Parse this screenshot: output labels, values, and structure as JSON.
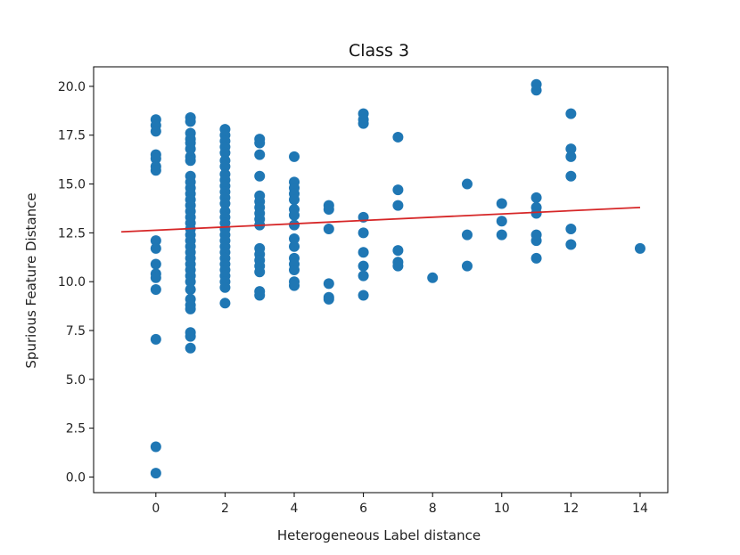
{
  "chart_data": {
    "type": "scatter",
    "title": "Class 3",
    "xlabel": "Heterogeneous Label distance",
    "ylabel": "Spurious Feature Distance",
    "xlim": [
      -1.8,
      14.8
    ],
    "ylim": [
      -0.8,
      21.0
    ],
    "xticks": [
      0,
      2,
      4,
      6,
      8,
      10,
      12,
      14
    ],
    "xtick_labels": [
      "0",
      "2",
      "4",
      "6",
      "8",
      "10",
      "12",
      "14"
    ],
    "yticks": [
      0.0,
      2.5,
      5.0,
      7.5,
      10.0,
      12.5,
      15.0,
      17.5,
      20.0
    ],
    "ytick_labels": [
      "0.0",
      "2.5",
      "5.0",
      "7.5",
      "10.0",
      "12.5",
      "15.0",
      "17.5",
      "20.0"
    ],
    "grid": false,
    "point_color": "#1f77b4",
    "line_color": "#d62728",
    "series": [
      {
        "kind": "scatter",
        "points": [
          [
            0,
            18.3
          ],
          [
            0,
            18.0
          ],
          [
            0,
            17.7
          ],
          [
            0,
            16.5
          ],
          [
            0,
            16.3
          ],
          [
            0,
            15.9
          ],
          [
            0,
            15.7
          ],
          [
            0,
            12.1
          ],
          [
            0,
            11.7
          ],
          [
            0,
            10.9
          ],
          [
            0,
            10.4
          ],
          [
            0,
            10.2
          ],
          [
            0,
            9.6
          ],
          [
            0,
            7.05
          ],
          [
            0,
            1.55
          ],
          [
            0,
            0.2
          ],
          [
            1,
            18.4
          ],
          [
            1,
            18.2
          ],
          [
            1,
            17.6
          ],
          [
            1,
            17.3
          ],
          [
            1,
            17.1
          ],
          [
            1,
            16.8
          ],
          [
            1,
            16.4
          ],
          [
            1,
            16.2
          ],
          [
            1,
            15.4
          ],
          [
            1,
            15.1
          ],
          [
            1,
            14.8
          ],
          [
            1,
            14.5
          ],
          [
            1,
            14.2
          ],
          [
            1,
            13.9
          ],
          [
            1,
            13.6
          ],
          [
            1,
            13.3
          ],
          [
            1,
            13.0
          ],
          [
            1,
            12.7
          ],
          [
            1,
            12.4
          ],
          [
            1,
            12.1
          ],
          [
            1,
            11.8
          ],
          [
            1,
            11.5
          ],
          [
            1,
            11.2
          ],
          [
            1,
            10.9
          ],
          [
            1,
            10.6
          ],
          [
            1,
            10.3
          ],
          [
            1,
            10.0
          ],
          [
            1,
            9.6
          ],
          [
            1,
            9.1
          ],
          [
            1,
            8.8
          ],
          [
            1,
            8.6
          ],
          [
            1,
            7.4
          ],
          [
            1,
            7.2
          ],
          [
            1,
            6.6
          ],
          [
            2,
            17.8
          ],
          [
            2,
            17.5
          ],
          [
            2,
            17.2
          ],
          [
            2,
            16.9
          ],
          [
            2,
            16.6
          ],
          [
            2,
            16.2
          ],
          [
            2,
            15.9
          ],
          [
            2,
            15.5
          ],
          [
            2,
            15.2
          ],
          [
            2,
            14.9
          ],
          [
            2,
            14.6
          ],
          [
            2,
            14.3
          ],
          [
            2,
            14.0
          ],
          [
            2,
            13.6
          ],
          [
            2,
            13.3
          ],
          [
            2,
            13.0
          ],
          [
            2,
            12.7
          ],
          [
            2,
            12.4
          ],
          [
            2,
            12.1
          ],
          [
            2,
            11.8
          ],
          [
            2,
            11.5
          ],
          [
            2,
            11.2
          ],
          [
            2,
            10.9
          ],
          [
            2,
            10.6
          ],
          [
            2,
            10.3
          ],
          [
            2,
            10.0
          ],
          [
            2,
            9.7
          ],
          [
            2,
            8.9
          ],
          [
            3,
            17.3
          ],
          [
            3,
            17.1
          ],
          [
            3,
            16.5
          ],
          [
            3,
            15.4
          ],
          [
            3,
            14.4
          ],
          [
            3,
            14.1
          ],
          [
            3,
            13.8
          ],
          [
            3,
            13.5
          ],
          [
            3,
            13.2
          ],
          [
            3,
            12.9
          ],
          [
            3,
            11.7
          ],
          [
            3,
            11.4
          ],
          [
            3,
            11.1
          ],
          [
            3,
            10.8
          ],
          [
            3,
            10.5
          ],
          [
            3,
            9.5
          ],
          [
            3,
            9.3
          ],
          [
            4,
            16.4
          ],
          [
            4,
            15.1
          ],
          [
            4,
            14.8
          ],
          [
            4,
            14.5
          ],
          [
            4,
            14.2
          ],
          [
            4,
            13.7
          ],
          [
            4,
            13.4
          ],
          [
            4,
            12.9
          ],
          [
            4,
            12.2
          ],
          [
            4,
            11.8
          ],
          [
            4,
            11.2
          ],
          [
            4,
            10.9
          ],
          [
            4,
            10.6
          ],
          [
            4,
            10.0
          ],
          [
            4,
            9.8
          ],
          [
            5,
            13.9
          ],
          [
            5,
            13.7
          ],
          [
            5,
            12.7
          ],
          [
            5,
            9.9
          ],
          [
            5,
            9.2
          ],
          [
            5,
            9.1
          ],
          [
            6,
            18.6
          ],
          [
            6,
            18.3
          ],
          [
            6,
            18.1
          ],
          [
            6,
            13.3
          ],
          [
            6,
            12.5
          ],
          [
            6,
            11.5
          ],
          [
            6,
            10.8
          ],
          [
            6,
            10.3
          ],
          [
            6,
            9.3
          ],
          [
            7,
            17.4
          ],
          [
            7,
            14.7
          ],
          [
            7,
            13.9
          ],
          [
            7,
            11.6
          ],
          [
            7,
            11.0
          ],
          [
            7,
            10.8
          ],
          [
            8,
            10.2
          ],
          [
            9,
            15.0
          ],
          [
            9,
            12.4
          ],
          [
            9,
            10.8
          ],
          [
            10,
            14.0
          ],
          [
            10,
            13.1
          ],
          [
            10,
            12.4
          ],
          [
            11,
            20.1
          ],
          [
            11,
            19.8
          ],
          [
            11,
            14.3
          ],
          [
            11,
            13.8
          ],
          [
            11,
            13.5
          ],
          [
            11,
            12.4
          ],
          [
            11,
            12.1
          ],
          [
            11,
            11.2
          ],
          [
            12,
            18.6
          ],
          [
            12,
            16.8
          ],
          [
            12,
            16.4
          ],
          [
            12,
            15.4
          ],
          [
            12,
            12.7
          ],
          [
            12,
            11.9
          ],
          [
            14,
            11.7
          ]
        ]
      },
      {
        "kind": "line",
        "points": [
          [
            -1,
            12.55
          ],
          [
            14,
            13.8
          ]
        ]
      }
    ]
  }
}
